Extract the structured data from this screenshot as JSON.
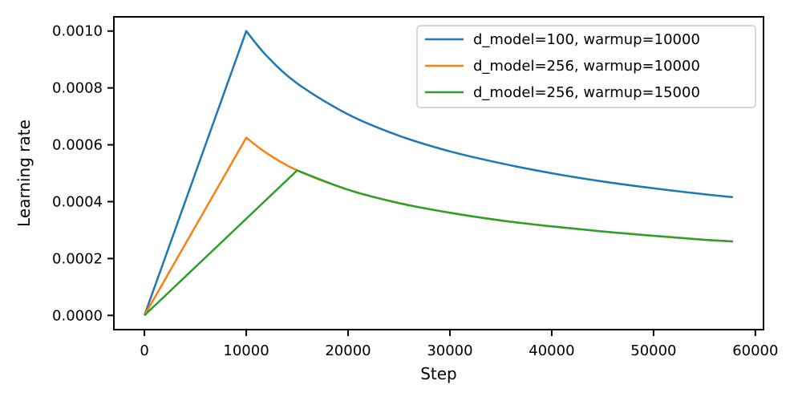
{
  "chart_data": {
    "type": "line",
    "title": "",
    "xlabel": "Step",
    "ylabel": "Learning rate",
    "xlim": [
      -3000,
      60800
    ],
    "ylim": [
      -5e-05,
      0.00105
    ],
    "xticks": [
      0,
      10000,
      20000,
      30000,
      40000,
      50000,
      60000
    ],
    "xtick_labels": [
      "0",
      "10000",
      "20000",
      "30000",
      "40000",
      "50000",
      "60000"
    ],
    "yticks": [
      0.0,
      0.0002,
      0.0004,
      0.0006,
      0.0008,
      0.001
    ],
    "ytick_labels": [
      "0.0000",
      "0.0002",
      "0.0004",
      "0.0006",
      "0.0008",
      "0.0010"
    ],
    "grid": false,
    "legend_position": "top-right",
    "series": [
      {
        "name": "d_model=100, warmup=10000",
        "color": "#1f77b4",
        "x": [
          0,
          10000,
          12000,
          15000,
          20000,
          25000,
          30000,
          35000,
          40000,
          45000,
          50000,
          55000,
          57800
        ],
        "y": [
          0.0,
          0.001,
          0.000913,
          0.000816,
          0.000707,
          0.000632,
          0.000577,
          0.000535,
          0.0005,
          0.000471,
          0.000447,
          0.000426,
          0.000416
        ]
      },
      {
        "name": "d_model=256, warmup=10000",
        "color": "#ff7f0e",
        "x": [
          0,
          10000,
          12000,
          15000,
          20000,
          25000,
          30000,
          35000,
          40000,
          45000,
          50000,
          55000,
          57800
        ],
        "y": [
          0.0,
          0.000625,
          0.000571,
          0.00051,
          0.000442,
          0.000395,
          0.000361,
          0.000334,
          0.000313,
          0.000295,
          0.00028,
          0.000266,
          0.00026
        ]
      },
      {
        "name": "d_model=256, warmup=15000",
        "color": "#2ca02c",
        "x": [
          0,
          15000,
          20000,
          25000,
          30000,
          35000,
          40000,
          45000,
          50000,
          55000,
          57800
        ],
        "y": [
          0.0,
          0.00051,
          0.000442,
          0.000395,
          0.000361,
          0.000334,
          0.000313,
          0.000295,
          0.00028,
          0.000266,
          0.00026
        ]
      }
    ]
  }
}
